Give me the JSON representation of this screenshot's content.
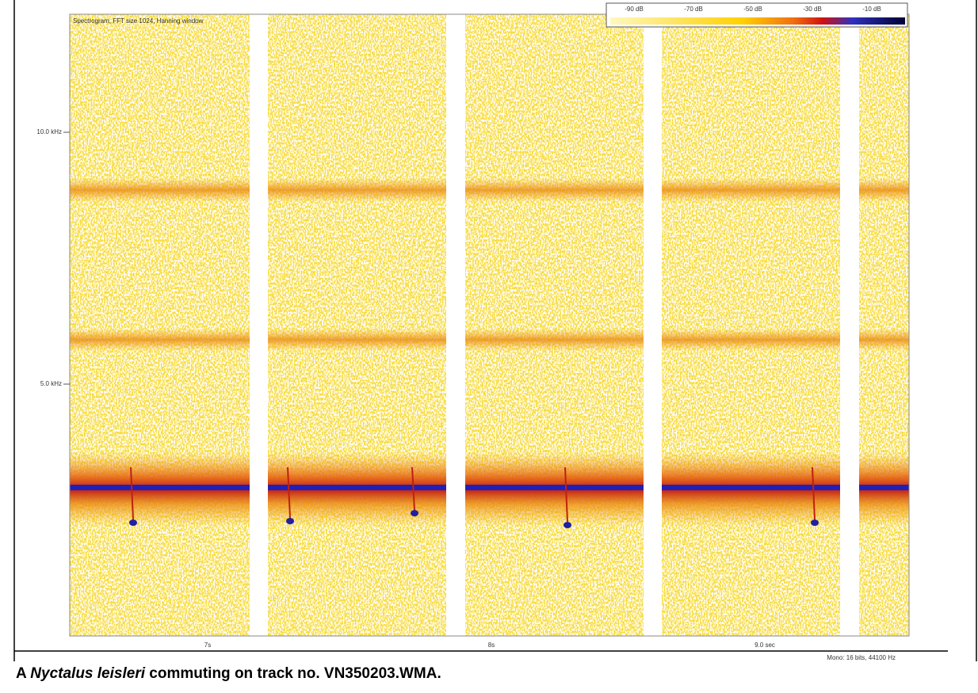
{
  "title": "Spectrogram, FFT size 1024, Hanning window",
  "color_scale": {
    "labels": [
      "-90 dB",
      "-70 dB",
      "-50 dB",
      "-30 dB",
      "-10 dB"
    ]
  },
  "y_axis": {
    "labels": [
      "10.0 kHz",
      "5.0 kHz"
    ]
  },
  "x_axis": {
    "labels": [
      "7s",
      "8s",
      "9.0 sec"
    ]
  },
  "format": "Mono: 16 bits, 44100 Hz",
  "caption": {
    "prefix": "A ",
    "species": "Nyctalus leisleri",
    "suffix": " commuting on track no. VN350203.WMA."
  }
}
